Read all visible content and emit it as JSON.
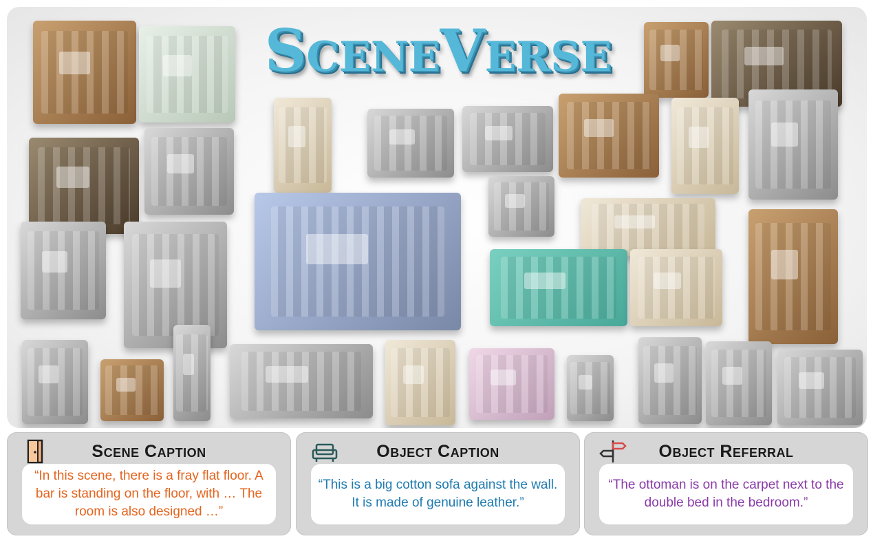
{
  "title": {
    "part1_big": "S",
    "part1_small": "CENE",
    "part2_big": "V",
    "part2_small": "ERSE"
  },
  "panels": [
    {
      "title": "Scene Caption",
      "icon": "door-icon",
      "text": "“In this scene, there is a fray flat floor. A bar is standing on the floor, with … The room is also designed …”",
      "color": "#e4641e"
    },
    {
      "title": "Object Caption",
      "icon": "sofa-icon",
      "text": "“This is a big cotton sofa against the wall. It is made of genuine leather.”",
      "color": "#1e7ab0"
    },
    {
      "title": "Object Referral",
      "icon": "signpost-icon",
      "text": "“The ottoman is on the carpet next to the double bed in the bedroom.”",
      "color": "#8a3aa8"
    }
  ]
}
